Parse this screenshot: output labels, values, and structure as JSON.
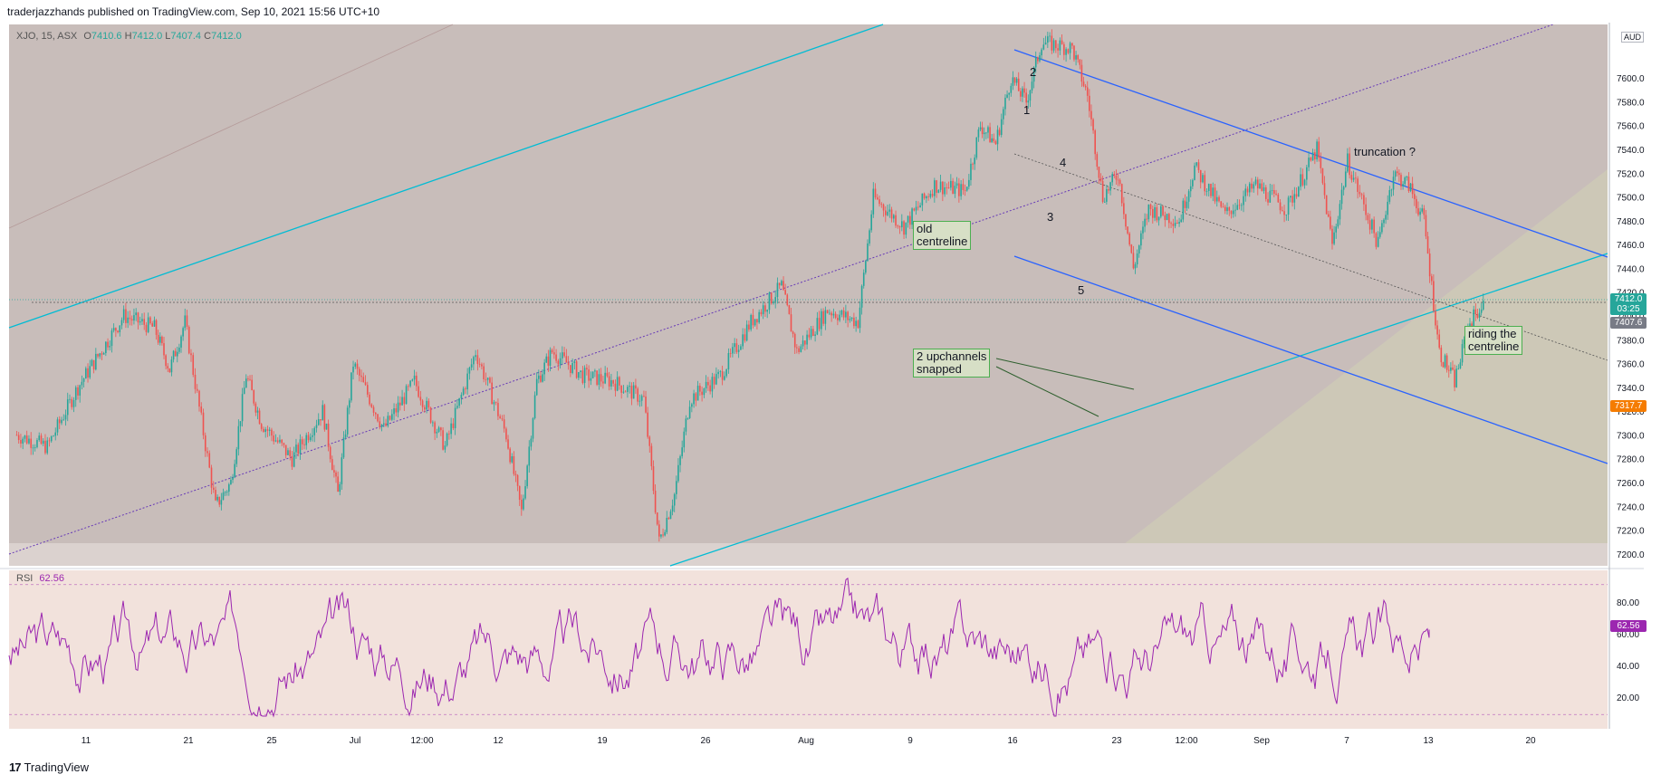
{
  "header": {
    "publisher_text": "traderjazzhands published on TradingView.com, Sep 10, 2021 15:56 UTC+10"
  },
  "footer": {
    "brand": "TradingView",
    "logo_glyph": "17"
  },
  "legend": {
    "symbol": "XJO, 15, ASX",
    "open_label": "O",
    "open": "7410.6",
    "high_label": "H",
    "high": "7412.0",
    "low_label": "L",
    "low": "7407.4",
    "close_label": "C",
    "close": "7412.0"
  },
  "rsi_legend": {
    "label": "RSI",
    "value": "62.56"
  },
  "currency": "AUD",
  "price_tags": {
    "last_price": "7412.0",
    "countdown": "03:25",
    "secondary_price": "7407.6",
    "alert_price": "7317.7",
    "rsi_value": "62.56"
  },
  "annotations": {
    "old_centreline": [
      "old",
      "centreline"
    ],
    "upchannels": [
      "2 upchannels",
      "snapped"
    ],
    "riding": [
      "riding the",
      "centreline"
    ],
    "truncation": "truncation ?",
    "wave_labels": [
      "1",
      "2",
      "3",
      "4",
      "5"
    ]
  },
  "colors": {
    "up": "#26a69a",
    "down": "#ef5350",
    "rsi": "#9c27b0",
    "channel_blue": "#2962ff",
    "channel_cyan": "#00bcd4",
    "last_price_bg": "#26a69a",
    "alert_bg": "#f57c00",
    "rsi_tag_bg": "#9c27b0"
  },
  "chart_data": {
    "type": "candlestick",
    "symbol": "XJO",
    "interval": "15",
    "exchange": "ASX",
    "y_axis_ticks": [
      7200.0,
      7220.0,
      7240.0,
      7260.0,
      7280.0,
      7300.0,
      7320.0,
      7340.0,
      7360.0,
      7380.0,
      7400.0,
      7420.0,
      7440.0,
      7460.0,
      7480.0,
      7500.0,
      7520.0,
      7540.0,
      7560.0,
      7580.0,
      7600.0
    ],
    "ylim": [
      7190,
      7645
    ],
    "x_axis_ticks": [
      "11",
      "21",
      "25",
      "Jul",
      "12:00",
      "12",
      "19",
      "26",
      "Aug",
      "9",
      "16",
      "23",
      "12:00",
      "Sep",
      "7",
      "13",
      "20"
    ],
    "price_path": [
      {
        "t": "Jun 08",
        "price": 7300
      },
      {
        "t": "Jun 10",
        "price": 7290
      },
      {
        "t": "Jun 12",
        "price": 7340
      },
      {
        "t": "Jun 15",
        "price": 7400
      },
      {
        "t": "Jun 17",
        "price": 7390
      },
      {
        "t": "Jun 18",
        "price": 7355
      },
      {
        "t": "Jun 19",
        "price": 7395
      },
      {
        "t": "Jun 21",
        "price": 7240
      },
      {
        "t": "Jun 22",
        "price": 7260
      },
      {
        "t": "Jun 23",
        "price": 7350
      },
      {
        "t": "Jun 24",
        "price": 7310
      },
      {
        "t": "Jun 26",
        "price": 7280
      },
      {
        "t": "Jun 28",
        "price": 7320
      },
      {
        "t": "Jun 29",
        "price": 7250
      },
      {
        "t": "Jun 30",
        "price": 7360
      },
      {
        "t": "Jul 02",
        "price": 7305
      },
      {
        "t": "Jul 04",
        "price": 7345
      },
      {
        "t": "Jul 06",
        "price": 7290
      },
      {
        "t": "Jul 08",
        "price": 7370
      },
      {
        "t": "Jul 10",
        "price": 7300
      },
      {
        "t": "Jul 11",
        "price": 7235
      },
      {
        "t": "Jul 12",
        "price": 7345
      },
      {
        "t": "Jul 13",
        "price": 7370
      },
      {
        "t": "Jul 15",
        "price": 7350
      },
      {
        "t": "Jul 17",
        "price": 7345
      },
      {
        "t": "Jul 19",
        "price": 7330
      },
      {
        "t": "Jul 20",
        "price": 7210
      },
      {
        "t": "Jul 21",
        "price": 7250
      },
      {
        "t": "Jul 22",
        "price": 7330
      },
      {
        "t": "Jul 24",
        "price": 7350
      },
      {
        "t": "Jul 26",
        "price": 7395
      },
      {
        "t": "Jul 28",
        "price": 7425
      },
      {
        "t": "Jul 29",
        "price": 7370
      },
      {
        "t": "Jul 31",
        "price": 7405
      },
      {
        "t": "Aug 02",
        "price": 7395
      },
      {
        "t": "Aug 03",
        "price": 7500
      },
      {
        "t": "Aug 05",
        "price": 7475
      },
      {
        "t": "Aug 07",
        "price": 7510
      },
      {
        "t": "Aug 09",
        "price": 7505
      },
      {
        "t": "Aug 10",
        "price": 7560
      },
      {
        "t": "Aug 11",
        "price": 7545
      },
      {
        "t": "Aug 12",
        "price": 7600
      },
      {
        "t": "Aug 13",
        "price": 7580
      },
      {
        "t": "Aug 14",
        "price": 7630
      },
      {
        "t": "Aug 16",
        "price": 7625
      },
      {
        "t": "Aug 17",
        "price": 7585
      },
      {
        "t": "Aug 18",
        "price": 7500
      },
      {
        "t": "Aug 19",
        "price": 7520
      },
      {
        "t": "Aug 20",
        "price": 7440
      },
      {
        "t": "Aug 21",
        "price": 7490
      },
      {
        "t": "Aug 23",
        "price": 7480
      },
      {
        "t": "Aug 24",
        "price": 7525
      },
      {
        "t": "Aug 26",
        "price": 7485
      },
      {
        "t": "Aug 28",
        "price": 7510
      },
      {
        "t": "Aug 30",
        "price": 7490
      },
      {
        "t": "Sep 01",
        "price": 7540
      },
      {
        "t": "Sep 02",
        "price": 7460
      },
      {
        "t": "Sep 03",
        "price": 7530
      },
      {
        "t": "Sep 05",
        "price": 7460
      },
      {
        "t": "Sep 06",
        "price": 7520
      },
      {
        "t": "Sep 07",
        "price": 7510
      },
      {
        "t": "Sep 08",
        "price": 7480
      },
      {
        "t": "Sep 09",
        "price": 7370
      },
      {
        "t": "Sep 10",
        "price": 7345
      },
      {
        "t": "Sep 11",
        "price": 7395
      },
      {
        "t": "Sep 12",
        "price": 7412
      }
    ],
    "rsi": {
      "name": "RSI",
      "ylim": [
        0,
        100
      ],
      "ticks": [
        20.0,
        40.0,
        60.0,
        80.0
      ],
      "last": 62.56
    }
  }
}
